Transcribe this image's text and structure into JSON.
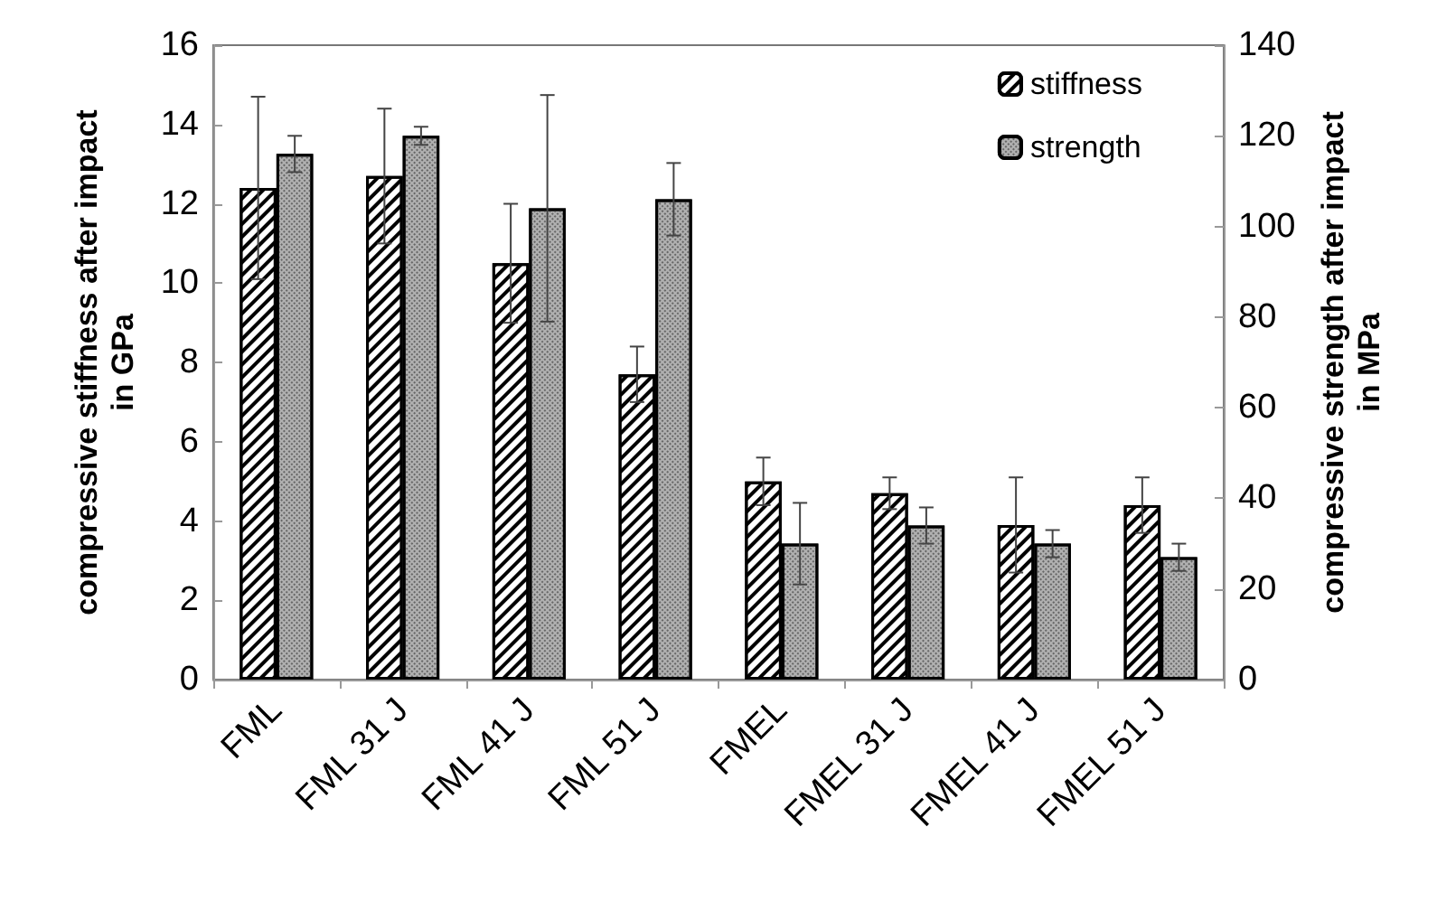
{
  "chart_data": {
    "type": "bar",
    "categories": [
      "FML",
      "FML 31 J",
      "FML 41 J",
      "FML 51 J",
      "FMEL",
      "FMEL 31 J",
      "FMEL 41 J",
      "FMEL 51 J"
    ],
    "ylabel": "compressive stiffness after impact in GPa",
    "y2label": "compressive strength after impact in MPa",
    "series": [
      {
        "name": "stiffness",
        "color": "#ffffff",
        "values": [
          12.4,
          12.7,
          10.5,
          7.7,
          5.0,
          4.7,
          3.9,
          4.4
        ],
        "errors": [
          2.3,
          1.7,
          1.5,
          0.7,
          0.6,
          0.4,
          1.2,
          0.7
        ]
      },
      {
        "name": "strength",
        "color": "#b0b0b0",
        "axis": "y2",
        "values": [
          116,
          120,
          104,
          106,
          30,
          34,
          30,
          27
        ],
        "errors": [
          4,
          2,
          25,
          8,
          9,
          4,
          3,
          3
        ]
      }
    ],
    "ylim": [
      0,
      16
    ],
    "yticks": [
      0,
      2,
      4,
      6,
      8,
      10,
      12,
      14,
      16
    ],
    "y2lim": [
      0,
      140
    ],
    "y2ticks": [
      0,
      20,
      40,
      60,
      80,
      100,
      120,
      140
    ],
    "grid": false,
    "legend": "top right"
  }
}
